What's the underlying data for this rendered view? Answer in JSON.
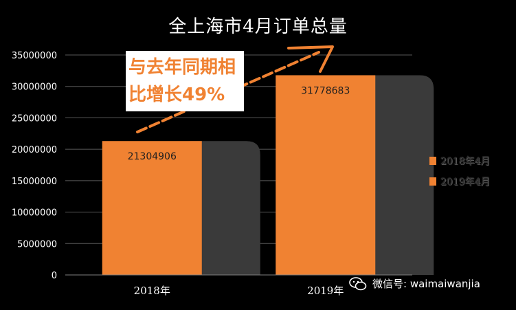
{
  "title": "全上海市4月订单总量",
  "annotation": {
    "line1": "与去年同期相",
    "line2": "比增长49%"
  },
  "watermark": {
    "text": "微信号: waimaiwanjia",
    "icon": "wechat-icon"
  },
  "colors": {
    "bar": "#f08232",
    "background": "#000000",
    "shadow": "#3a3a3a",
    "arrow": "#f08232"
  },
  "chart_data": {
    "type": "bar",
    "title": "全上海市4月订单总量",
    "categories": [
      "2018年",
      "2019年"
    ],
    "values": [
      21304906,
      31778683
    ],
    "data_labels": [
      "21304906",
      "31778683"
    ],
    "ylim": [
      0,
      35000000
    ],
    "yticks": [
      0,
      5000000,
      10000000,
      15000000,
      20000000,
      25000000,
      30000000,
      35000000
    ],
    "ytick_labels": [
      "0",
      "5000000",
      "10000000",
      "15000000",
      "20000000",
      "25000000",
      "30000000",
      "35000000"
    ],
    "grid": true,
    "legend": {
      "position": "right",
      "entries": [
        "2018年4月",
        "2019年4月"
      ]
    }
  }
}
